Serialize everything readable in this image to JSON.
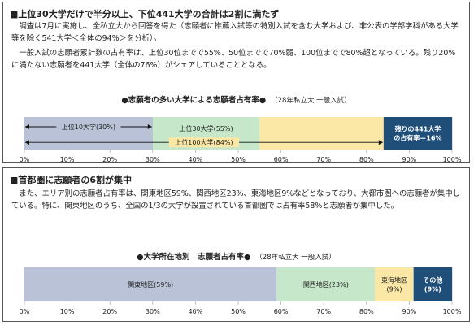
{
  "panel1": {
    "heading": "■上位30大学だけで半分以上、下位441大学の合計は2割に満たず",
    "paragraphs": [
      "調査は7月に実施し、全私立大から回答を得た（志願者に推薦入試等の特別入試を含む大学および、非公表の学部学科がある大学等を除く541大学＜全体の94%＞を分析）。",
      "一般入試の志願者累計数の占有率は、上位30位までで55%、50位までで70%弱、100位までで80%超となっている。残り20%に満たない志願者を441大学（全体の76%）がシェアしていることとなる。"
    ],
    "chart_title": "●志願者の多い大学による志願者占有率●",
    "chart_subtitle": "（28年私立大 一般入試）"
  },
  "panel2": {
    "heading": "■首都圏に志願者の6割が集中",
    "paragraphs": [
      "また、エリア別の志願者占有率は、関東地区59%、関西地区23%、東海地区9%などとなっており、大都市圏への志願者が集中している。特に、関東地区のうち、全国の1/3の大学が設置されている首都圏では占有率58%と志願者が集中した。"
    ],
    "chart_title": "●大学所在地別　志願者占有率●",
    "chart_subtitle": "（28年私立大 一般入試）"
  },
  "chart_data": [
    {
      "type": "bar",
      "orientation": "horizontal-stacked",
      "title": "●志願者の多い大学による志願者占有率●",
      "subtitle": "（28年私立大 一般入試）",
      "xlim": [
        0,
        100
      ],
      "xticks": [
        "0%",
        "10%",
        "20%",
        "30%",
        "40%",
        "50%",
        "60%",
        "70%",
        "80%",
        "90%",
        "100%"
      ],
      "segments": [
        {
          "start": 0,
          "end": 30,
          "label": "",
          "color": "#b9c2d6"
        },
        {
          "start": 30,
          "end": 55,
          "label": "上位30大学(55%)",
          "color": "#c6e7c9"
        },
        {
          "start": 55,
          "end": 84,
          "label": "",
          "color": "#fbe7a6"
        },
        {
          "start": 84,
          "end": 100,
          "label": "残りの441大学\nの占有率＝16%",
          "color": "#1f4e79",
          "text_color": "#ffffff"
        }
      ],
      "arrows": [
        {
          "start": 0,
          "end": 30,
          "label": "上位10大学(30%)"
        },
        {
          "start": 0,
          "end": 84,
          "label": "上位100大学(84%)"
        }
      ]
    },
    {
      "type": "bar",
      "orientation": "horizontal-stacked",
      "title": "●大学所在地別　志願者占有率●",
      "subtitle": "（28年私立大 一般入試）",
      "xlim": [
        0,
        100
      ],
      "xticks": [
        "0%",
        "10%",
        "20%",
        "30%",
        "40%",
        "50%",
        "60%",
        "70%",
        "80%",
        "90%",
        "100%"
      ],
      "segments": [
        {
          "start": 0,
          "end": 59,
          "label": "関東地区(59%)",
          "color": "#b9c2d6"
        },
        {
          "start": 59,
          "end": 82,
          "label": "関西地区(23%)",
          "color": "#c6e7c9"
        },
        {
          "start": 82,
          "end": 91,
          "label": "東海地区\n(9%)",
          "color": "#fbe7a6"
        },
        {
          "start": 91,
          "end": 100,
          "label": "その他\n(9%)",
          "color": "#1f4e79",
          "text_color": "#ffffff"
        }
      ]
    }
  ]
}
